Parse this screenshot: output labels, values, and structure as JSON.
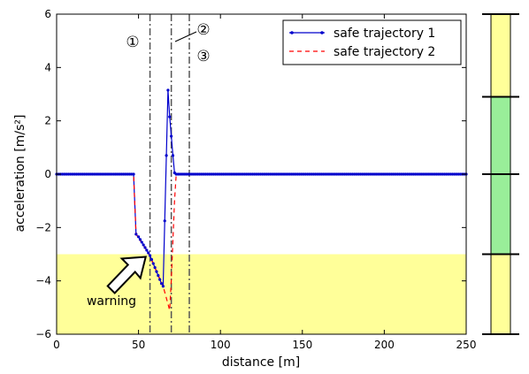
{
  "chart_data": {
    "type": "line",
    "xlabel": "distance [m]",
    "ylabel": "acceleration [m/s²]",
    "xlim": [
      0,
      250
    ],
    "ylim": [
      -6,
      6
    ],
    "x_ticks": [
      "0",
      "50",
      "100",
      "150",
      "200",
      "250"
    ],
    "y_ticks": [
      "−6",
      "−4",
      "−2",
      "0",
      "2",
      "4",
      "6"
    ],
    "grid": false,
    "legend": "top-right",
    "warning_region": {
      "ymin": -6,
      "ymax": -3,
      "color": "#ffff99"
    },
    "vertical_markers": [
      {
        "label": "①",
        "x": 57
      },
      {
        "label": "②",
        "x": 70
      },
      {
        "label": "③",
        "x": 81
      }
    ],
    "annotation": {
      "text": "warning",
      "target": [
        56,
        -3.0
      ],
      "arrow_color": "#000000",
      "arrow_fill": "#ffffff"
    },
    "series": [
      {
        "name": "safe trajectory 1",
        "color": "#0000cc",
        "style": "solid-dots",
        "points": [
          [
            0,
            0
          ],
          [
            47,
            0
          ],
          [
            48.5,
            -2.25
          ],
          [
            50,
            -2.35
          ],
          [
            51,
            -2.45
          ],
          [
            52,
            -2.55
          ],
          [
            53,
            -2.65
          ],
          [
            54,
            -2.75
          ],
          [
            55,
            -2.85
          ],
          [
            56,
            -2.95
          ],
          [
            57,
            -3.05
          ],
          [
            58,
            -3.2
          ],
          [
            59,
            -3.35
          ],
          [
            60,
            -3.5
          ],
          [
            61,
            -3.65
          ],
          [
            62,
            -3.8
          ],
          [
            63,
            -3.95
          ],
          [
            64,
            -4.1
          ],
          [
            65,
            -4.2
          ],
          [
            68,
            3.15
          ],
          [
            69,
            2.15
          ],
          [
            71,
            0.7
          ],
          [
            72,
            0.05
          ],
          [
            73,
            0
          ],
          [
            250,
            0
          ]
        ]
      },
      {
        "name": "safe trajectory 2",
        "color": "#ff0000",
        "style": "dashed",
        "points": [
          [
            0,
            0
          ],
          [
            47,
            0
          ],
          [
            48.5,
            -2.25
          ],
          [
            56,
            -2.95
          ],
          [
            60,
            -3.5
          ],
          [
            65,
            -4.2
          ],
          [
            69,
            -5.1
          ],
          [
            70,
            -4.0
          ],
          [
            72,
            -1.0
          ],
          [
            73,
            0
          ],
          [
            250,
            0
          ]
        ]
      }
    ]
  },
  "side_bar": {
    "segments": [
      {
        "ymin": 2.9,
        "ymax": 6,
        "color": "#ffff99"
      },
      {
        "ymin": 0,
        "ymax": 2.9,
        "color": "#99ee99"
      },
      {
        "ymin": -3,
        "ymax": 0,
        "color": "#99ee99"
      },
      {
        "ymin": -6,
        "ymax": -3,
        "color": "#ffff99"
      }
    ],
    "lines": [
      6,
      2.9,
      0,
      -3,
      -6
    ]
  }
}
